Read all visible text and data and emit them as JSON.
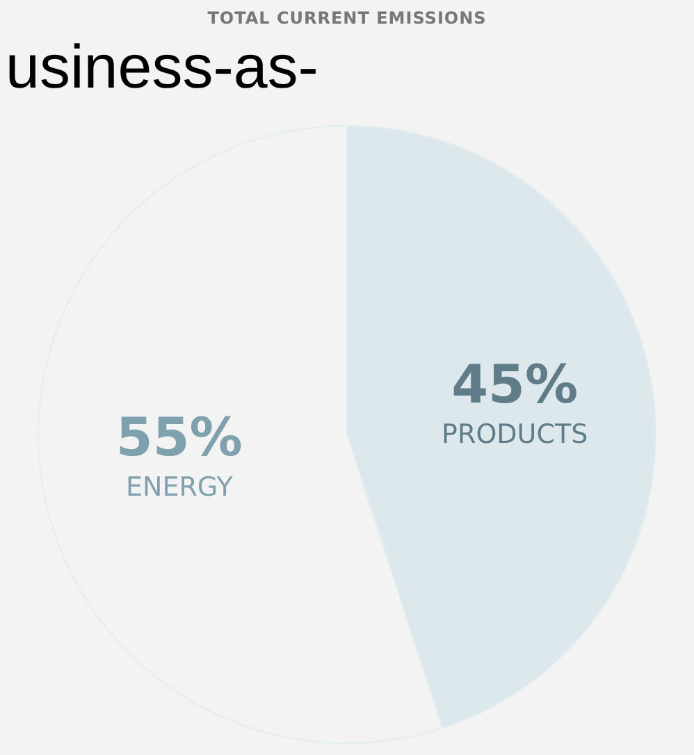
{
  "chart_data": {
    "type": "pie",
    "title": "TOTAL CURRENT EMISSIONS",
    "annotations": [
      "usiness-as-"
    ],
    "categories": [
      "PRODUCTS",
      "ENERGY"
    ],
    "values": [
      45,
      55
    ],
    "colors": [
      "#dde8ed",
      "#f3f3f3"
    ],
    "value_labels": [
      "45%",
      "55%"
    ],
    "legend": false
  }
}
